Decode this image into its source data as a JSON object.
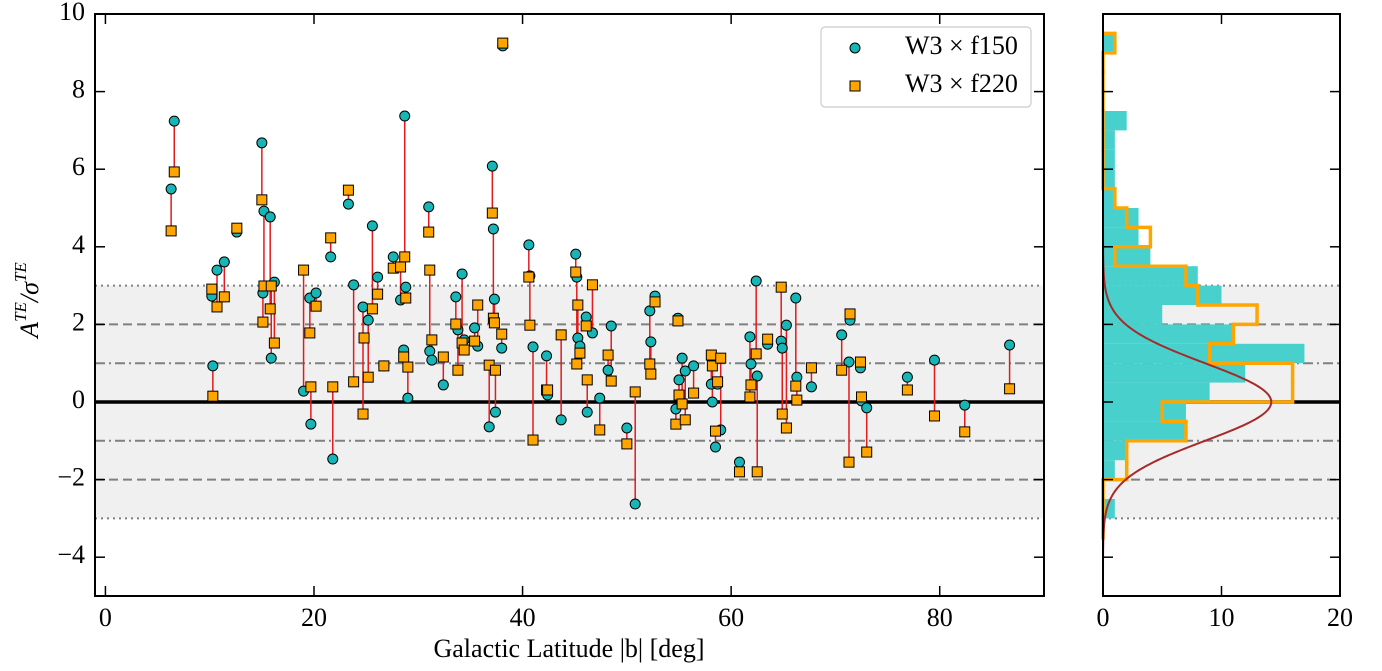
{
  "chart_data": [
    {
      "type": "scatter",
      "xlabel": "Galactic Latitude |b| [deg]",
      "ylabel": [
        "A",
        "TE",
        "/σ",
        "TE"
      ],
      "xlim": [
        -1,
        90
      ],
      "ylim": [
        -5,
        10
      ],
      "xticks": [
        0,
        20,
        40,
        60,
        80
      ],
      "yticks": [
        {
          "value": -4,
          "label": "−4"
        },
        {
          "value": -2,
          "label": "−2"
        },
        0,
        2,
        4,
        6,
        8,
        10
      ],
      "legend": "upper right",
      "band": [
        -3,
        3
      ],
      "reference_lines": [
        {
          "value": 3,
          "style": "dotted"
        },
        {
          "value": -3,
          "style": "dotted"
        },
        {
          "value": 2,
          "style": "dashed"
        },
        {
          "value": -2,
          "style": "dashed"
        },
        {
          "value": 1,
          "style": "dashdot"
        },
        {
          "value": -1,
          "style": "dashdot"
        },
        {
          "value": 0,
          "style": "solid"
        }
      ],
      "connector_color": "#e41a1c",
      "x": [
        6.3,
        6.6,
        10.2,
        10.3,
        10.7,
        11.4,
        12.6,
        15.0,
        15.2,
        15.1,
        15.8,
        15.9,
        16.2,
        19.0,
        19.6,
        19.7,
        20.2,
        21.6,
        21.8,
        23.3,
        23.8,
        24.7,
        24.8,
        25.2,
        25.6,
        26.1,
        26.7,
        27.6,
        28.3,
        28.6,
        28.7,
        28.8,
        29.0,
        31.0,
        31.1,
        31.3,
        32.4,
        33.6,
        33.8,
        34.2,
        34.4,
        35.4,
        35.7,
        36.8,
        37.1,
        37.2,
        37.3,
        37.4,
        38.1,
        38.0,
        40.6,
        40.7,
        41.0,
        42.3,
        42.4,
        43.7,
        45.1,
        45.2,
        45.3,
        45.5,
        46.1,
        46.2,
        46.7,
        47.4,
        48.2,
        48.5,
        50.0,
        50.8,
        52.2,
        52.3,
        52.7,
        54.7,
        54.9,
        55.0,
        55.3,
        55.6,
        56.4,
        58.1,
        58.2,
        58.5,
        58.7,
        59.0,
        60.8,
        61.8,
        61.9,
        62.4,
        62.5,
        63.5,
        64.8,
        64.9,
        65.3,
        66.2,
        66.3,
        67.7,
        70.6,
        71.3,
        71.4,
        72.4,
        72.5,
        73.0,
        76.9,
        79.5,
        82.4,
        86.7
      ],
      "series": [
        {
          "name": "W3 × f150",
          "marker": "circle",
          "color": "#17b5b5",
          "values": [
            5.49,
            7.24,
            2.73,
            0.93,
            3.4,
            3.61,
            4.38,
            6.68,
            4.92,
            2.81,
            4.77,
            1.13,
            3.09,
            0.28,
            2.68,
            -0.57,
            2.81,
            3.74,
            -1.47,
            5.1,
            3.02,
            2.45,
            1.65,
            2.11,
            4.54,
            3.22,
            0.93,
            3.74,
            2.63,
            1.34,
            7.37,
            2.96,
            0.1,
            5.03,
            1.31,
            1.08,
            0.44,
            2.71,
            1.86,
            3.3,
            1.6,
            1.91,
            1.44,
            -0.64,
            6.08,
            4.46,
            2.65,
            -0.26,
            9.18,
            1.39,
            4.05,
            3.25,
            1.42,
            1.19,
            0.18,
            -0.46,
            3.81,
            3.22,
            1.65,
            1.44,
            2.19,
            -0.26,
            1.78,
            0.1,
            0.82,
            1.96,
            -0.67,
            -2.63,
            2.35,
            1.55,
            2.73,
            -0.18,
            2.16,
            0.57,
            1.13,
            0.8,
            0.93,
            0.46,
            0.0,
            -1.16,
            0.46,
            -0.72,
            -1.55,
            1.68,
            0.98,
            3.12,
            0.67,
            1.49,
            1.57,
            1.39,
            1.98,
            2.68,
            0.64,
            0.39,
            1.73,
            1.03,
            2.11,
            0.88,
            0.03,
            -0.15,
            0.64,
            1.08,
            -0.08,
            1.47
          ]
        },
        {
          "name": "W3 × f220",
          "marker": "square",
          "color": "#ffa500",
          "values": [
            4.41,
            5.93,
            2.91,
            0.15,
            2.45,
            2.71,
            4.48,
            5.21,
            2.99,
            2.06,
            2.4,
            2.99,
            1.52,
            3.4,
            1.78,
            0.39,
            2.47,
            4.23,
            0.39,
            5.46,
            0.52,
            -0.31,
            1.65,
            0.64,
            2.4,
            2.78,
            0.93,
            3.45,
            3.48,
            1.16,
            3.74,
            2.68,
            0.9,
            4.38,
            3.4,
            1.6,
            1.16,
            2.01,
            0.82,
            1.52,
            1.34,
            1.57,
            2.5,
            0.95,
            4.87,
            2.16,
            2.04,
            0.82,
            9.25,
            1.75,
            3.22,
            1.98,
            -0.98,
            0.31,
            0.31,
            1.73,
            3.35,
            0.98,
            2.5,
            1.26,
            1.96,
            0.57,
            3.02,
            -0.72,
            1.21,
            0.54,
            -1.08,
            0.26,
            0.98,
            0.72,
            2.58,
            -0.57,
            2.09,
            0.18,
            -0.05,
            -0.46,
            0.23,
            1.21,
            0.93,
            -0.75,
            0.52,
            1.13,
            -1.8,
            0.13,
            0.44,
            1.24,
            -1.8,
            1.62,
            2.96,
            -0.31,
            -0.67,
            0.41,
            0.05,
            0.88,
            0.82,
            -1.55,
            2.27,
            1.03,
            0.13,
            -1.29,
            0.31,
            -0.36,
            -0.77,
            0.34
          ]
        }
      ]
    },
    {
      "type": "histogram",
      "orientation": "horizontal",
      "xlim": [
        0,
        20
      ],
      "ylim": [
        -5,
        10
      ],
      "xticks": [
        0,
        10,
        20
      ],
      "yticks": [
        -4,
        -2,
        0,
        2,
        4,
        6,
        8,
        10
      ],
      "band": [
        -3,
        3
      ],
      "reference_lines": [
        {
          "value": 3,
          "style": "dotted"
        },
        {
          "value": -3,
          "style": "dotted"
        },
        {
          "value": 2,
          "style": "dashed"
        },
        {
          "value": -2,
          "style": "dashed"
        },
        {
          "value": 1,
          "style": "dashdot"
        },
        {
          "value": -1,
          "style": "dashdot"
        },
        {
          "value": 0,
          "style": "solid"
        }
      ],
      "bins": [
        -3.5,
        -3,
        -2.5,
        -2,
        -1.5,
        -1,
        -0.5,
        0,
        0.5,
        1,
        1.5,
        2,
        2.5,
        3,
        3.5,
        4,
        4.5,
        5,
        5.5,
        6,
        6.5,
        7,
        7.5,
        8,
        8.5,
        9,
        9.5
      ],
      "series": [
        {
          "style": "filled",
          "color": "#48d1cc",
          "values": [
            0,
            1,
            0,
            1,
            2,
            7,
            7,
            9,
            12,
            17,
            11,
            5,
            10,
            8,
            4,
            3,
            3,
            1,
            1,
            1,
            1,
            2,
            0,
            0,
            0,
            1
          ]
        },
        {
          "style": "step",
          "color": "#ffa500",
          "values": [
            0,
            0,
            0,
            2,
            2,
            7,
            5,
            16,
            16,
            9,
            11,
            13,
            8,
            7,
            1,
            4,
            2,
            1,
            0,
            0,
            0,
            0,
            0,
            0,
            0,
            1
          ]
        }
      ],
      "curve": {
        "type": "gaussian",
        "mean": 0,
        "std": 1,
        "amplitude": 14.2,
        "color": "#a52a2a"
      }
    }
  ]
}
